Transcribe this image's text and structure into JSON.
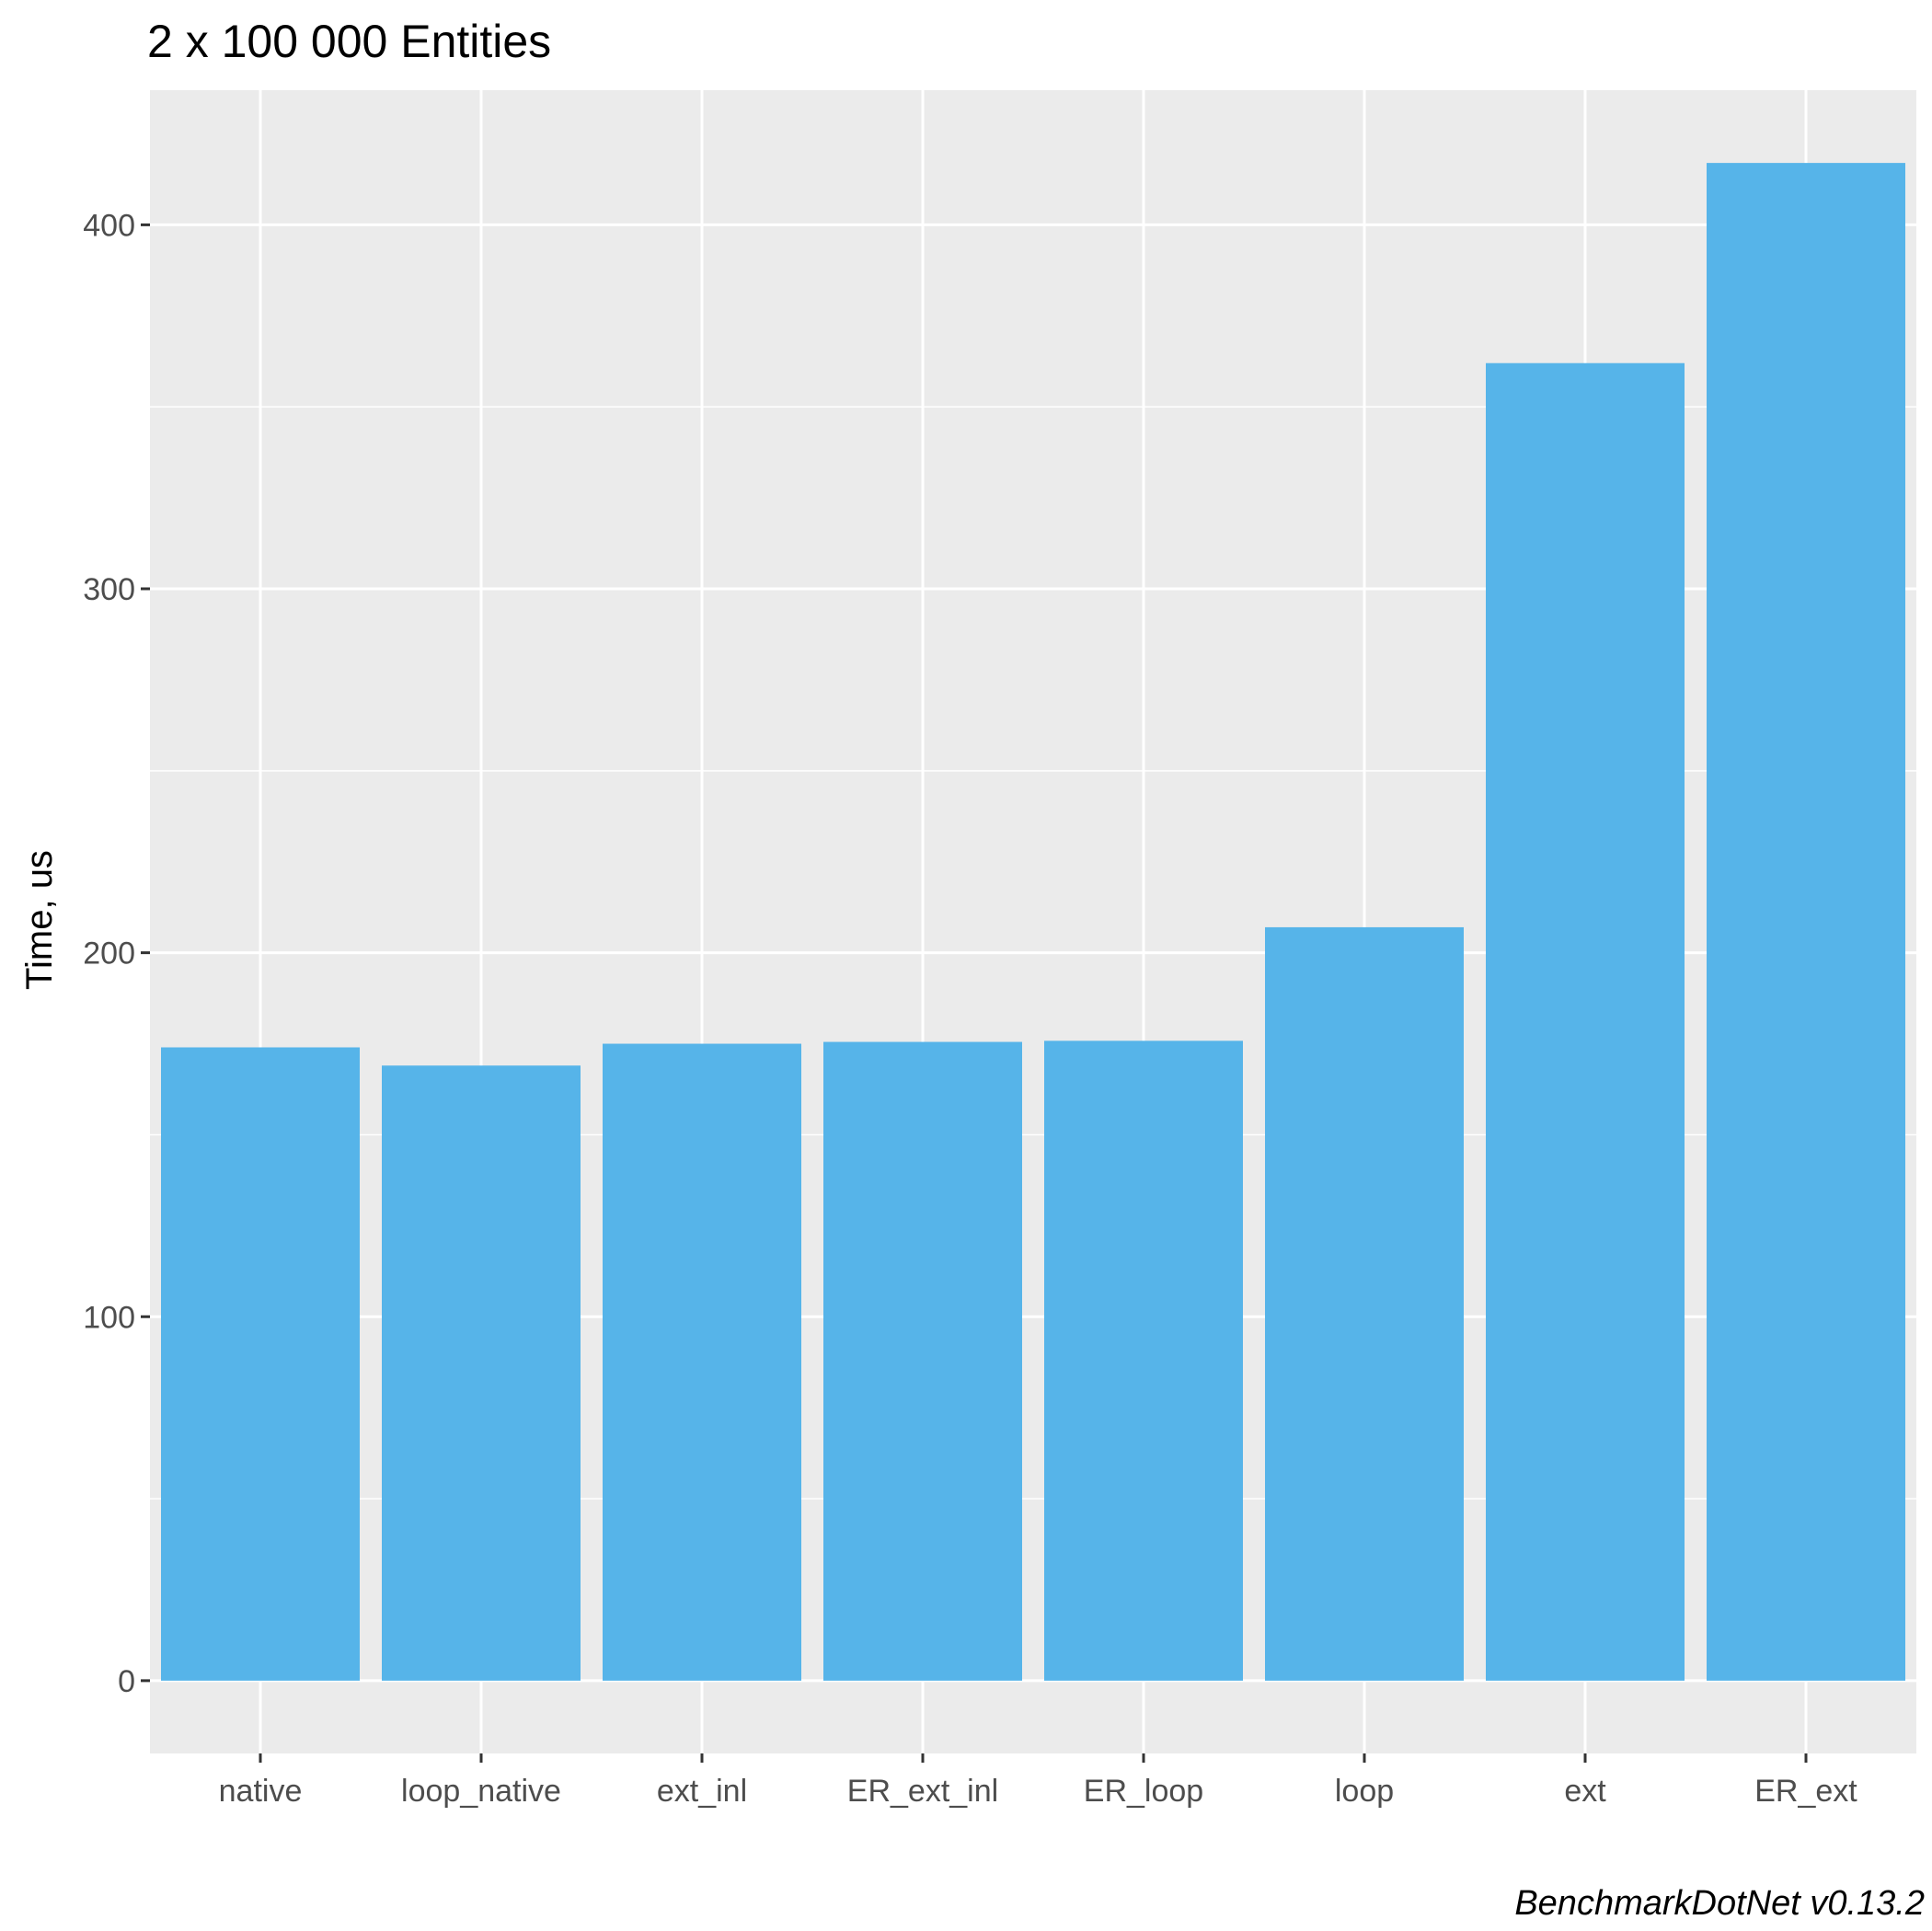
{
  "chart_data": {
    "type": "bar",
    "title": "2 x 100 000 Entities",
    "ylabel": "Time, us",
    "xlabel": "",
    "caption": "BenchmarkDotNet v0.13.2",
    "categories": [
      "native",
      "loop_native",
      "ext_inl",
      "ER_ext_inl",
      "ER_loop",
      "loop",
      "ext",
      "ER_ext"
    ],
    "values": [
      174,
      169,
      175,
      175.5,
      175.8,
      207,
      362,
      417
    ],
    "ylim": [
      -20,
      437
    ],
    "yticks": [
      "0",
      "100",
      "200",
      "300",
      "400"
    ],
    "grid": true,
    "legend": "none",
    "colors": {
      "bar": "#56b4e9",
      "panel": "#ebebeb",
      "grid": "#ffffff",
      "tick": "#333333"
    }
  }
}
